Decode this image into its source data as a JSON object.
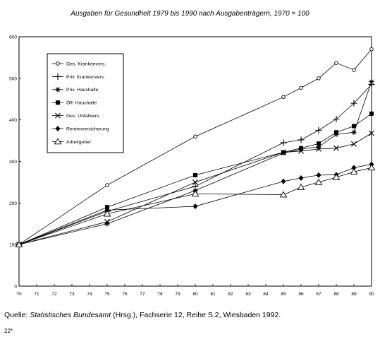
{
  "chart_data": {
    "type": "line",
    "title": "Ausgaben für Gesundheit 1979 bis 1990 nach Ausgabenträgern, 1970 = 100",
    "xlabel": "",
    "ylabel": "",
    "xlim": [
      70,
      90
    ],
    "ylim": [
      0,
      600
    ],
    "x_ticks": [
      70,
      71,
      72,
      73,
      74,
      75,
      76,
      77,
      78,
      79,
      80,
      81,
      82,
      83,
      84,
      85,
      86,
      87,
      88,
      89,
      90
    ],
    "y_ticks": [
      0,
      100,
      200,
      300,
      400,
      500,
      600
    ],
    "grid": false,
    "legend_position": "top-left",
    "series": [
      {
        "name": "Ges. Krankenvers.",
        "marker": "circle-open",
        "x": [
          70,
          75,
          80,
          85,
          86,
          87,
          88,
          89,
          90
        ],
        "values": [
          100,
          243,
          360,
          455,
          477,
          500,
          537,
          520,
          570
        ]
      },
      {
        "name": "Priv. Krankenvers.",
        "marker": "plus",
        "x": [
          70,
          75,
          80,
          85,
          86,
          87,
          88,
          89,
          90
        ],
        "values": [
          100,
          180,
          240,
          345,
          352,
          375,
          402,
          440,
          485
        ]
      },
      {
        "name": "Priv. Haushalte",
        "marker": "asterisk",
        "x": [
          70,
          75,
          80,
          85,
          86,
          87,
          88,
          89,
          90
        ],
        "values": [
          100,
          150,
          230,
          320,
          330,
          335,
          365,
          370,
          492
        ]
      },
      {
        "name": "Öff. Haushalte",
        "marker": "square-filled",
        "x": [
          70,
          75,
          80,
          85,
          86,
          87,
          88,
          89,
          90
        ],
        "values": [
          100,
          190,
          267,
          322,
          332,
          343,
          370,
          385,
          415
        ]
      },
      {
        "name": "Ges. Unfallvers.",
        "marker": "x",
        "x": [
          70,
          75,
          80,
          85,
          86,
          87,
          88,
          89,
          90
        ],
        "values": [
          100,
          155,
          250,
          322,
          325,
          330,
          332,
          342,
          368
        ]
      },
      {
        "name": "Rentenversicherung",
        "marker": "diamond-filled",
        "x": [
          70,
          75,
          80,
          85,
          86,
          87,
          88,
          89,
          90
        ],
        "values": [
          100,
          183,
          192,
          252,
          260,
          267,
          268,
          285,
          293
        ]
      },
      {
        "name": "Arbeitgeber",
        "marker": "triangle-open",
        "x": [
          70,
          75,
          80,
          85,
          86,
          87,
          88,
          89,
          90
        ],
        "values": [
          100,
          174,
          222,
          220,
          238,
          250,
          262,
          275,
          285
        ]
      }
    ]
  },
  "source": {
    "prefix": "Quelle: ",
    "publisher": "Statistisches Bundesamt",
    "rest": " (Hrsg.), Fachserie 12, Reihe S.2, Wiesbaden 1992."
  },
  "page_mark": "22*"
}
